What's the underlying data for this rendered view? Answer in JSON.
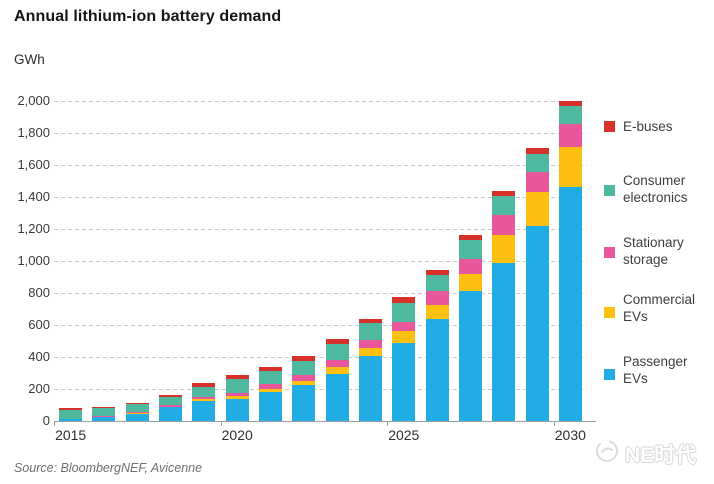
{
  "header": {
    "title": "Annual lithium-ion battery demand"
  },
  "y_axis": {
    "unit_label": "GWh",
    "tick_values": [
      0,
      200,
      400,
      600,
      800,
      1000,
      1200,
      1400,
      1600,
      1800,
      2000
    ],
    "tick_labels": [
      "0",
      "200",
      "400",
      "600",
      "800",
      "1,000",
      "1,200",
      "1,400",
      "1,600",
      "1,800",
      "2,000"
    ]
  },
  "x_axis": {
    "tick_years": [
      "2015",
      "2020",
      "2025",
      "2030"
    ]
  },
  "chart_data": {
    "type": "bar",
    "stacked": true,
    "title": "Annual lithium-ion battery demand",
    "xlabel": "",
    "ylabel": "GWh",
    "ylim": [
      0,
      2000
    ],
    "grid": "horizontal dashed every 200",
    "legend_position": "right",
    "categories": [
      2015,
      2016,
      2017,
      2018,
      2019,
      2020,
      2021,
      2022,
      2023,
      2024,
      2025,
      2026,
      2027,
      2028,
      2029,
      2030
    ],
    "stack_order_bottom_to_top": [
      "Passenger EVs",
      "Commercial EVs",
      "Stationary storage",
      "Consumer electronics",
      "E-buses"
    ],
    "series": [
      {
        "name": "Passenger EVs",
        "color": "#21ACE3",
        "values": [
          10,
          25,
          45,
          85,
          125,
          140,
          180,
          225,
          295,
          405,
          490,
          640,
          810,
          990,
          1220,
          1460
        ]
      },
      {
        "name": "Commercial EVs",
        "color": "#FDC010",
        "values": [
          2,
          3,
          4,
          5,
          10,
          15,
          20,
          25,
          40,
          50,
          70,
          85,
          110,
          170,
          210,
          255
        ]
      },
      {
        "name": "Stationary storage",
        "color": "#E8579B",
        "values": [
          3,
          4,
          5,
          8,
          15,
          20,
          30,
          35,
          45,
          50,
          60,
          85,
          90,
          125,
          125,
          140
        ]
      },
      {
        "name": "Consumer electronics",
        "color": "#4FB9A0",
        "values": [
          55,
          48,
          51,
          50,
          65,
          90,
          85,
          90,
          100,
          105,
          120,
          105,
          120,
          120,
          115,
          115
        ]
      },
      {
        "name": "E-buses",
        "color": "#D7312C",
        "values": [
          10,
          10,
          10,
          12,
          20,
          25,
          20,
          30,
          30,
          30,
          35,
          30,
          30,
          35,
          35,
          30
        ]
      }
    ],
    "totals": [
      80,
      90,
      115,
      160,
      235,
      290,
      335,
      405,
      510,
      640,
      775,
      945,
      1160,
      1440,
      1705,
      2000
    ]
  },
  "legend": {
    "items": [
      {
        "name": "E-buses",
        "lines": [
          "E-buses"
        ]
      },
      {
        "name": "Consumer electronics",
        "lines": [
          "Consumer",
          "electronics"
        ]
      },
      {
        "name": "Stationary storage",
        "lines": [
          "Stationary",
          "storage"
        ]
      },
      {
        "name": "Commercial EVs",
        "lines": [
          "Commercial",
          "EVs"
        ]
      },
      {
        "name": "Passenger EVs",
        "lines": [
          "Passenger",
          "EVs"
        ]
      }
    ]
  },
  "footer": {
    "source": "Source: BloombergNEF, Avicenne"
  },
  "watermark": {
    "text": "NE时代"
  }
}
